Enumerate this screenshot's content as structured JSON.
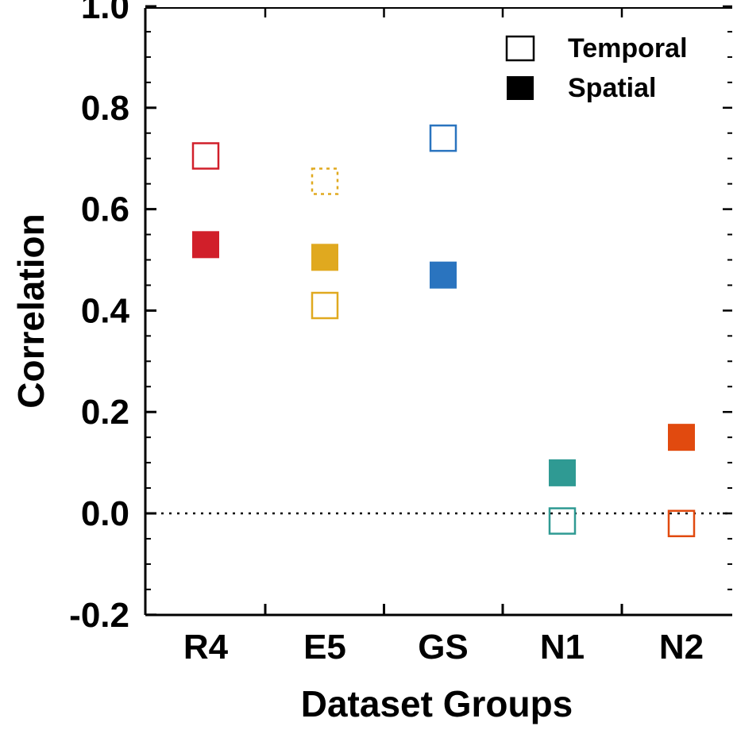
{
  "chart_data": {
    "type": "scatter",
    "title": "",
    "xlabel": "Dataset Groups",
    "ylabel": "Correlation",
    "categories": [
      "R4",
      "E5",
      "GS",
      "N1",
      "N2"
    ],
    "ylim": [
      -0.2,
      1.0
    ],
    "yticks": [
      "-0.2",
      "0.0",
      "0.2",
      "0.4",
      "0.6",
      "0.8",
      "1.0"
    ],
    "grid": false,
    "zero_line": "dotted",
    "legend": {
      "placement": "top-right",
      "entries": [
        {
          "label": "Temporal",
          "marker": "open-square"
        },
        {
          "label": "Spatial",
          "marker": "filled-square"
        }
      ]
    },
    "colors": {
      "R4": "#d11f2a",
      "E5": "#e0a91f",
      "GS": "#2a74bf",
      "N1": "#2f9a93",
      "N2": "#e14a0f"
    },
    "series": [
      {
        "name": "Temporal",
        "marker": "open",
        "values": [
          0.705,
          0.41,
          0.74,
          -0.015,
          -0.02
        ]
      },
      {
        "name": "Spatial",
        "marker": "filled",
        "values": [
          0.53,
          0.505,
          0.47,
          0.08,
          0.15
        ]
      }
    ],
    "extra_points": [
      {
        "category": "E5",
        "value": 0.655,
        "marker": "open-dotted"
      }
    ]
  }
}
